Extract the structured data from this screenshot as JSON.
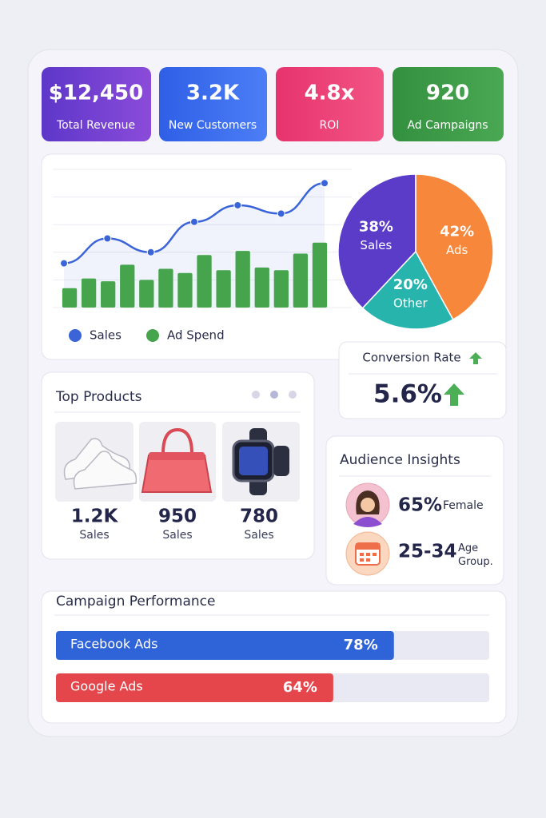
{
  "kpis": [
    {
      "value": "$12,450",
      "label": "Total Revenue"
    },
    {
      "value": "3.2K",
      "label": "New Customers"
    },
    {
      "value": "4.8x",
      "label": "ROI"
    },
    {
      "value": "920",
      "label": "Ad Campaigns"
    }
  ],
  "chart_data": [
    {
      "type": "combo",
      "ylim": [
        0,
        100
      ],
      "grid": true,
      "series": [
        {
          "name": "Sales",
          "type": "line",
          "color": "#3a64d8",
          "values": [
            32,
            50,
            40,
            62,
            74,
            68,
            90
          ]
        },
        {
          "name": "Ad Spend",
          "type": "bar",
          "color": "#45a44c",
          "values": [
            14,
            21,
            19,
            31,
            20,
            28,
            25,
            38,
            27,
            41,
            29,
            27,
            39,
            47
          ]
        }
      ]
    },
    {
      "type": "pie",
      "categories": [
        "Sales",
        "Ads",
        "Other"
      ],
      "values": [
        38,
        42,
        20
      ],
      "value_labels": [
        "38%",
        "42%",
        "20%"
      ],
      "colors": [
        "#5a3cc8",
        "#f7873a",
        "#26b4ad"
      ]
    },
    {
      "type": "hbar",
      "title": "Campaign Performance",
      "categories": [
        "Facebook Ads",
        "Google Ads"
      ],
      "values": [
        78,
        64
      ],
      "value_labels": [
        "78%",
        "64%"
      ],
      "colors": [
        "#2f63d8",
        "#e4464c"
      ],
      "xlim": [
        0,
        100
      ]
    }
  ],
  "conversion": {
    "title": "Conversion Rate",
    "value": "5.6%"
  },
  "top_products": {
    "title": "Top Products",
    "items": [
      {
        "value": "1.2K",
        "label": "Sales"
      },
      {
        "value": "950",
        "label": "Sales"
      },
      {
        "value": "780",
        "label": "Sales"
      }
    ]
  },
  "audience": {
    "title": "Audience Insights",
    "rows": [
      {
        "value": "65%",
        "label": "Female"
      },
      {
        "value": "25-34",
        "label": "Age Group."
      }
    ]
  }
}
